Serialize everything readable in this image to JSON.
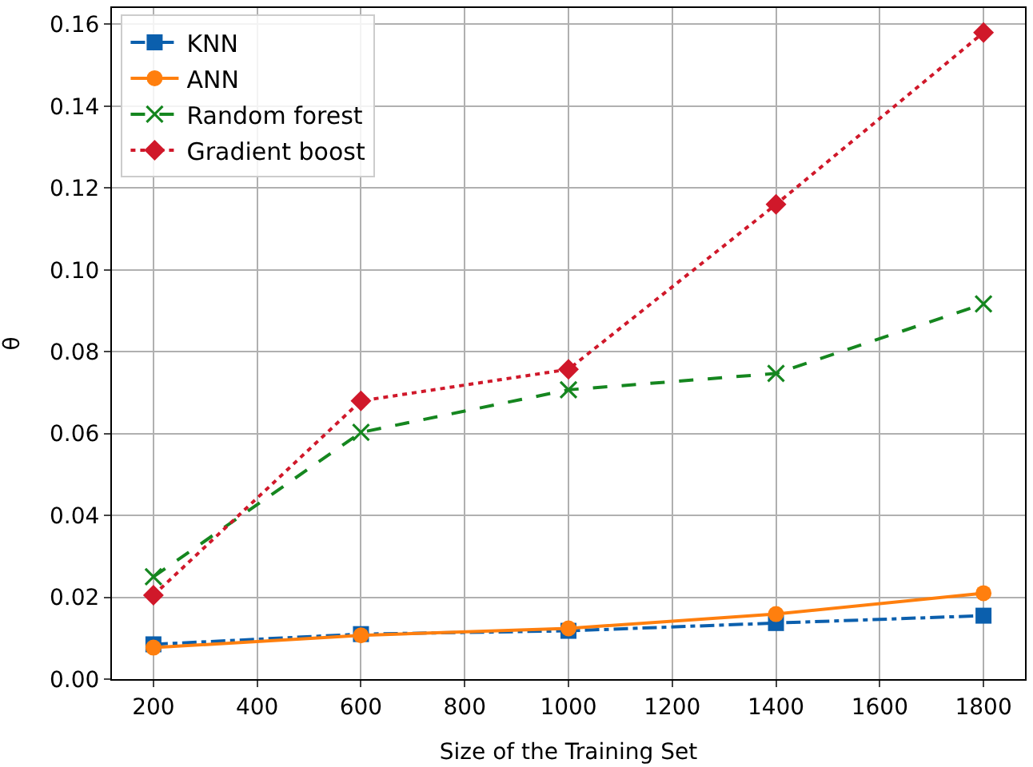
{
  "chart_data": {
    "type": "line",
    "xlabel": "Size of the Training Set",
    "ylabel": "θ",
    "x": [
      200,
      600,
      1000,
      1400,
      1800
    ],
    "xlim": [
      120,
      1880
    ],
    "xticks": [
      200,
      400,
      600,
      800,
      1000,
      1200,
      1400,
      1600,
      1800
    ],
    "ylim": [
      0,
      0.164
    ],
    "yticks": [
      {
        "value": 0,
        "label": "0.00"
      },
      {
        "value": 0.02,
        "label": "0.02"
      },
      {
        "value": 0.04,
        "label": "0.04"
      },
      {
        "value": 0.06,
        "label": "0.06"
      },
      {
        "value": 0.08,
        "label": "0.08"
      },
      {
        "value": 0.1,
        "label": "0.10"
      },
      {
        "value": 0.12,
        "label": "0.12"
      },
      {
        "value": 0.14,
        "label": "0.14"
      },
      {
        "value": 0.16,
        "label": "0.16"
      }
    ],
    "grid": true,
    "legend": "top left",
    "series": [
      {
        "name": "KNN",
        "color": "#0b5fad",
        "marker": "square",
        "line_style": "dashdot",
        "values": [
          0.0085,
          0.011,
          0.0118,
          0.0137,
          0.0155
        ]
      },
      {
        "name": "ANN",
        "color": "#ff7f0e",
        "marker": "circle",
        "line_style": "solid",
        "values": [
          0.0077,
          0.0107,
          0.0124,
          0.0159,
          0.021
        ]
      },
      {
        "name": "Random forest",
        "color": "#15861f",
        "marker": "cross",
        "line_style": "dashed",
        "values": [
          0.025,
          0.0603,
          0.0707,
          0.0747,
          0.0917
        ]
      },
      {
        "name": "Gradient boost",
        "color": "#d0182a",
        "marker": "diamond",
        "line_style": "dotted",
        "values": [
          0.0205,
          0.068,
          0.0757,
          0.116,
          0.158
        ]
      }
    ]
  }
}
